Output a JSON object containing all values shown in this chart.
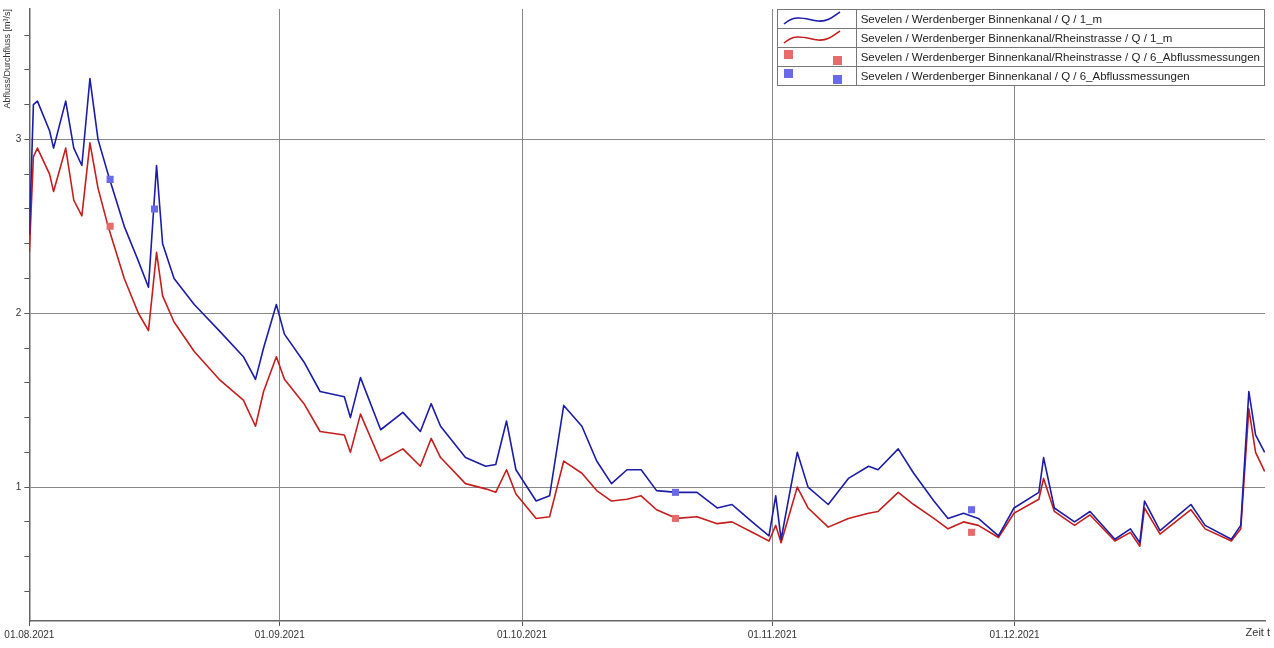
{
  "chart_data": {
    "type": "line",
    "xlabel": "Zeit t",
    "ylabel": "Abfluss/Durchfluss [m³/s]",
    "xlim": [
      "2021-08-01",
      "2022-01-01"
    ],
    "xticks": [
      {
        "value": "2021-08-01",
        "label": "01.08.2021"
      },
      {
        "value": "2021-09-01",
        "label": "01.09.2021"
      },
      {
        "value": "2021-10-01",
        "label": "01.10.2021"
      },
      {
        "value": "2021-11-01",
        "label": "01.11.2021"
      },
      {
        "value": "2021-12-01",
        "label": "01.12.2021"
      }
    ],
    "ylim": [
      0.23,
      3.75
    ],
    "yticks": [
      {
        "value": 0.4,
        "label": null
      },
      {
        "value": 0.6,
        "label": null
      },
      {
        "value": 0.8,
        "label": null
      },
      1,
      {
        "value": 1.2,
        "label": null
      },
      {
        "value": 1.4,
        "label": null
      },
      {
        "value": 1.6,
        "label": null
      },
      {
        "value": 1.8,
        "label": null
      },
      2,
      {
        "value": 2.2,
        "label": null
      },
      {
        "value": 2.4,
        "label": null
      },
      {
        "value": 2.6,
        "label": null
      },
      {
        "value": 2.8,
        "label": null
      },
      3,
      {
        "value": 3.2,
        "label": null
      },
      {
        "value": 3.4,
        "label": null
      },
      {
        "value": 3.6,
        "label": null
      }
    ],
    "grid": true,
    "legend": "top right",
    "line_style": "solid",
    "x": [
      "2021-08-01T00:00",
      "2021-08-01T12:00",
      "2021-08-02",
      "2021-08-03T12:00",
      "2021-08-04",
      "2021-08-05T12:00",
      "2021-08-06T12:00",
      "2021-08-07T12:00",
      "2021-08-08T12:00",
      "2021-08-09T12:00",
      "2021-08-10T18:00",
      "2021-08-12T18:00",
      "2021-08-14T12:00",
      "2021-08-15T18:00",
      "2021-08-16T18:00",
      "2021-08-17T12:00",
      "2021-08-18T22:00",
      "2021-08-21T10:00",
      "2021-08-24T12:00",
      "2021-08-27T12:00",
      "2021-08-29",
      "2021-08-30",
      "2021-08-31T14:00",
      "2021-09-01T14:00",
      "2021-09-04",
      "2021-09-06",
      "2021-09-09",
      "2021-09-09T18:00",
      "2021-09-11",
      "2021-09-13T12:00",
      "2021-09-16T06:00",
      "2021-09-18T10:00",
      "2021-09-19T18:00",
      "2021-09-20T22:00",
      "2021-09-24",
      "2021-09-26T12:00",
      "2021-09-27T18:00",
      "2021-09-29T02:00",
      "2021-09-30T06:00",
      "2021-10-02T18:00",
      "2021-10-04T10:00",
      "2021-10-06T04:00",
      "2021-10-08T10:00",
      "2021-10-10T06:00",
      "2021-10-12T02:00",
      "2021-10-14",
      "2021-10-15T18:00",
      "2021-10-17T16:00",
      "2021-10-20T04:00",
      "2021-10-22T16:00",
      "2021-10-25T04:00",
      "2021-10-27",
      "2021-10-29T12:00",
      "2021-10-31T14:00",
      "2021-11-01T10:00",
      "2021-11-02T02:00",
      "2021-11-04T02:00",
      "2021-11-05T10:00",
      "2021-11-07T22:00",
      "2021-11-10T10:00",
      "2021-11-12T22:00",
      "2021-11-14T02:00",
      "2021-11-16T14:00",
      "2021-11-18T12:00",
      "2021-11-21",
      "2021-11-22T18:00",
      "2021-11-24T16:00",
      "2021-11-26T12:00",
      "2021-11-29",
      "2021-11-30T22:00",
      "2021-12-04",
      "2021-12-04T14:00",
      "2021-12-05T22:00",
      "2021-12-08T10:00",
      "2021-12-10T08:00",
      "2021-12-13T10:00",
      "2021-12-15T08:00",
      "2021-12-16T12:00",
      "2021-12-17T02:00",
      "2021-12-19",
      "2021-12-22T20:00",
      "2021-12-24T14:00",
      "2021-12-27T20:00",
      "2021-12-29",
      "2021-12-30",
      "2021-12-30T20:00",
      "2021-12-31T23:00"
    ],
    "series": [
      {
        "name": "Sevelen / Werdenberger Binnenkanal / Q / 1_m",
        "color": "#1c1ca8",
        "values": [
          2.45,
          3.2,
          3.22,
          3.05,
          2.95,
          3.22,
          2.95,
          2.85,
          3.35,
          3.0,
          2.8,
          2.5,
          2.3,
          2.15,
          2.85,
          2.4,
          2.2,
          2.05,
          1.9,
          1.75,
          1.62,
          1.8,
          2.05,
          1.88,
          1.72,
          1.55,
          1.52,
          1.4,
          1.63,
          1.33,
          1.43,
          1.32,
          1.48,
          1.35,
          1.17,
          1.12,
          1.13,
          1.38,
          1.1,
          0.92,
          0.95,
          1.47,
          1.35,
          1.15,
          1.02,
          1.1,
          1.1,
          0.98,
          0.97,
          0.97,
          0.88,
          0.9,
          0.8,
          0.72,
          0.95,
          0.7,
          1.2,
          1.0,
          0.9,
          1.05,
          1.12,
          1.1,
          1.22,
          1.08,
          0.92,
          0.82,
          0.85,
          0.82,
          0.72,
          0.88,
          0.97,
          1.17,
          0.88,
          0.8,
          0.86,
          0.7,
          0.76,
          0.68,
          0.92,
          0.75,
          0.9,
          0.78,
          0.7,
          0.78,
          1.55,
          1.3,
          1.2
        ]
      },
      {
        "name": "Sevelen / Werdenberger Binnenkanal/Rheinstrasse / Q / 1_m",
        "color": "#c41e1e",
        "values": [
          2.35,
          2.9,
          2.95,
          2.8,
          2.7,
          2.95,
          2.65,
          2.56,
          2.98,
          2.72,
          2.5,
          2.2,
          2.0,
          1.9,
          2.35,
          2.1,
          1.95,
          1.78,
          1.62,
          1.5,
          1.35,
          1.55,
          1.75,
          1.62,
          1.48,
          1.32,
          1.3,
          1.2,
          1.42,
          1.15,
          1.22,
          1.12,
          1.28,
          1.17,
          1.02,
          0.99,
          0.97,
          1.1,
          0.96,
          0.82,
          0.83,
          1.15,
          1.08,
          0.98,
          0.92,
          0.93,
          0.95,
          0.87,
          0.82,
          0.83,
          0.79,
          0.8,
          0.74,
          0.69,
          0.78,
          0.68,
          1.0,
          0.88,
          0.77,
          0.82,
          0.85,
          0.86,
          0.97,
          0.9,
          0.82,
          0.76,
          0.8,
          0.78,
          0.71,
          0.85,
          0.93,
          1.05,
          0.86,
          0.78,
          0.84,
          0.69,
          0.74,
          0.66,
          0.88,
          0.73,
          0.87,
          0.76,
          0.69,
          0.76,
          1.45,
          1.2,
          1.09
        ]
      },
      {
        "name": "Sevelen / Werdenberger Binnenkanal/Rheinstrasse / Q / 6_Abflussmessungen",
        "type": "scatter",
        "marker": "square",
        "color": "#e86a6a",
        "x": [
          "2021-08-11",
          "2021-10-20",
          "2021-11-25T16:00"
        ],
        "values": [
          2.5,
          0.82,
          0.74
        ]
      },
      {
        "name": "Sevelen / Werdenberger Binnenkanal / Q / 6_Abflussmessungen",
        "type": "scatter",
        "marker": "square",
        "color": "#6a6ae8",
        "x": [
          "2021-08-11",
          "2021-08-16T12:00",
          "2021-10-20",
          "2021-11-25T16:00"
        ],
        "values": [
          2.77,
          2.6,
          0.97,
          0.87
        ]
      }
    ]
  }
}
